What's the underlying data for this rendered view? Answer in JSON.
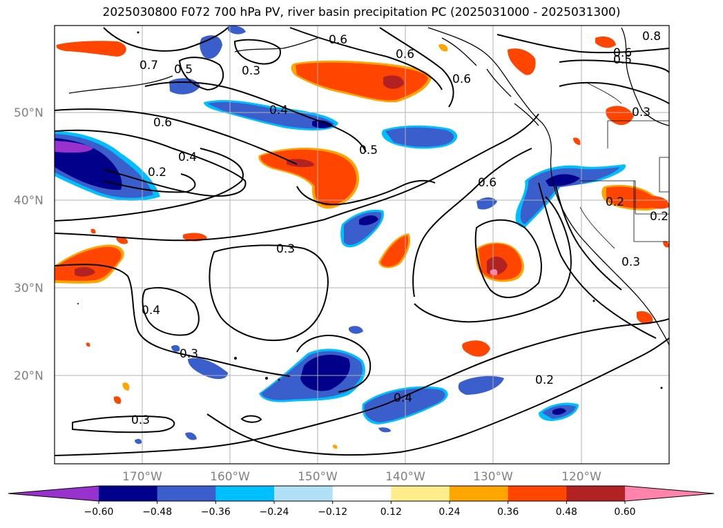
{
  "title": "2025030800 F072 700 hPa PV, river basin precipitation PC (2025031000 - 2025031300)",
  "map": {
    "lat_labels": [
      "50°N",
      "40°N",
      "30°N",
      "20°N"
    ],
    "lat_values": [
      50,
      40,
      30,
      20
    ],
    "lon_labels": [
      "170°W",
      "160°W",
      "150°W",
      "140°W",
      "130°W",
      "120°W"
    ],
    "lon_values": [
      -170,
      -160,
      -150,
      -140,
      -130,
      -120
    ],
    "extent": {
      "lon_min": -180,
      "lon_max": -110,
      "lat_min": 10,
      "lat_max": 60
    },
    "contour_labels": [
      "0.8",
      "0.7",
      "0.6",
      "0.6",
      "0.6",
      "0.6",
      "0.6",
      "0.6",
      "0.5",
      "0.5",
      "0.5",
      "0.4",
      "0.4",
      "0.4",
      "0.4",
      "0.3",
      "0.3",
      "0.3",
      "0.3",
      "0.3",
      "0.3",
      "0.2",
      "0.2",
      "0.2",
      "0.2"
    ]
  },
  "colorbar": {
    "colors": [
      "#9932cc",
      "#00008b",
      "#3a5fcd",
      "#00bfff",
      "#b0e0f6",
      "#ffffff",
      "#ffec8b",
      "#ffa500",
      "#ff4500",
      "#b22222",
      "#ff83aa"
    ],
    "tick_labels": [
      "−0.60",
      "−0.48",
      "−0.36",
      "−0.24",
      "−0.12",
      "0.12",
      "0.24",
      "0.36",
      "0.48",
      "0.60"
    ]
  }
}
